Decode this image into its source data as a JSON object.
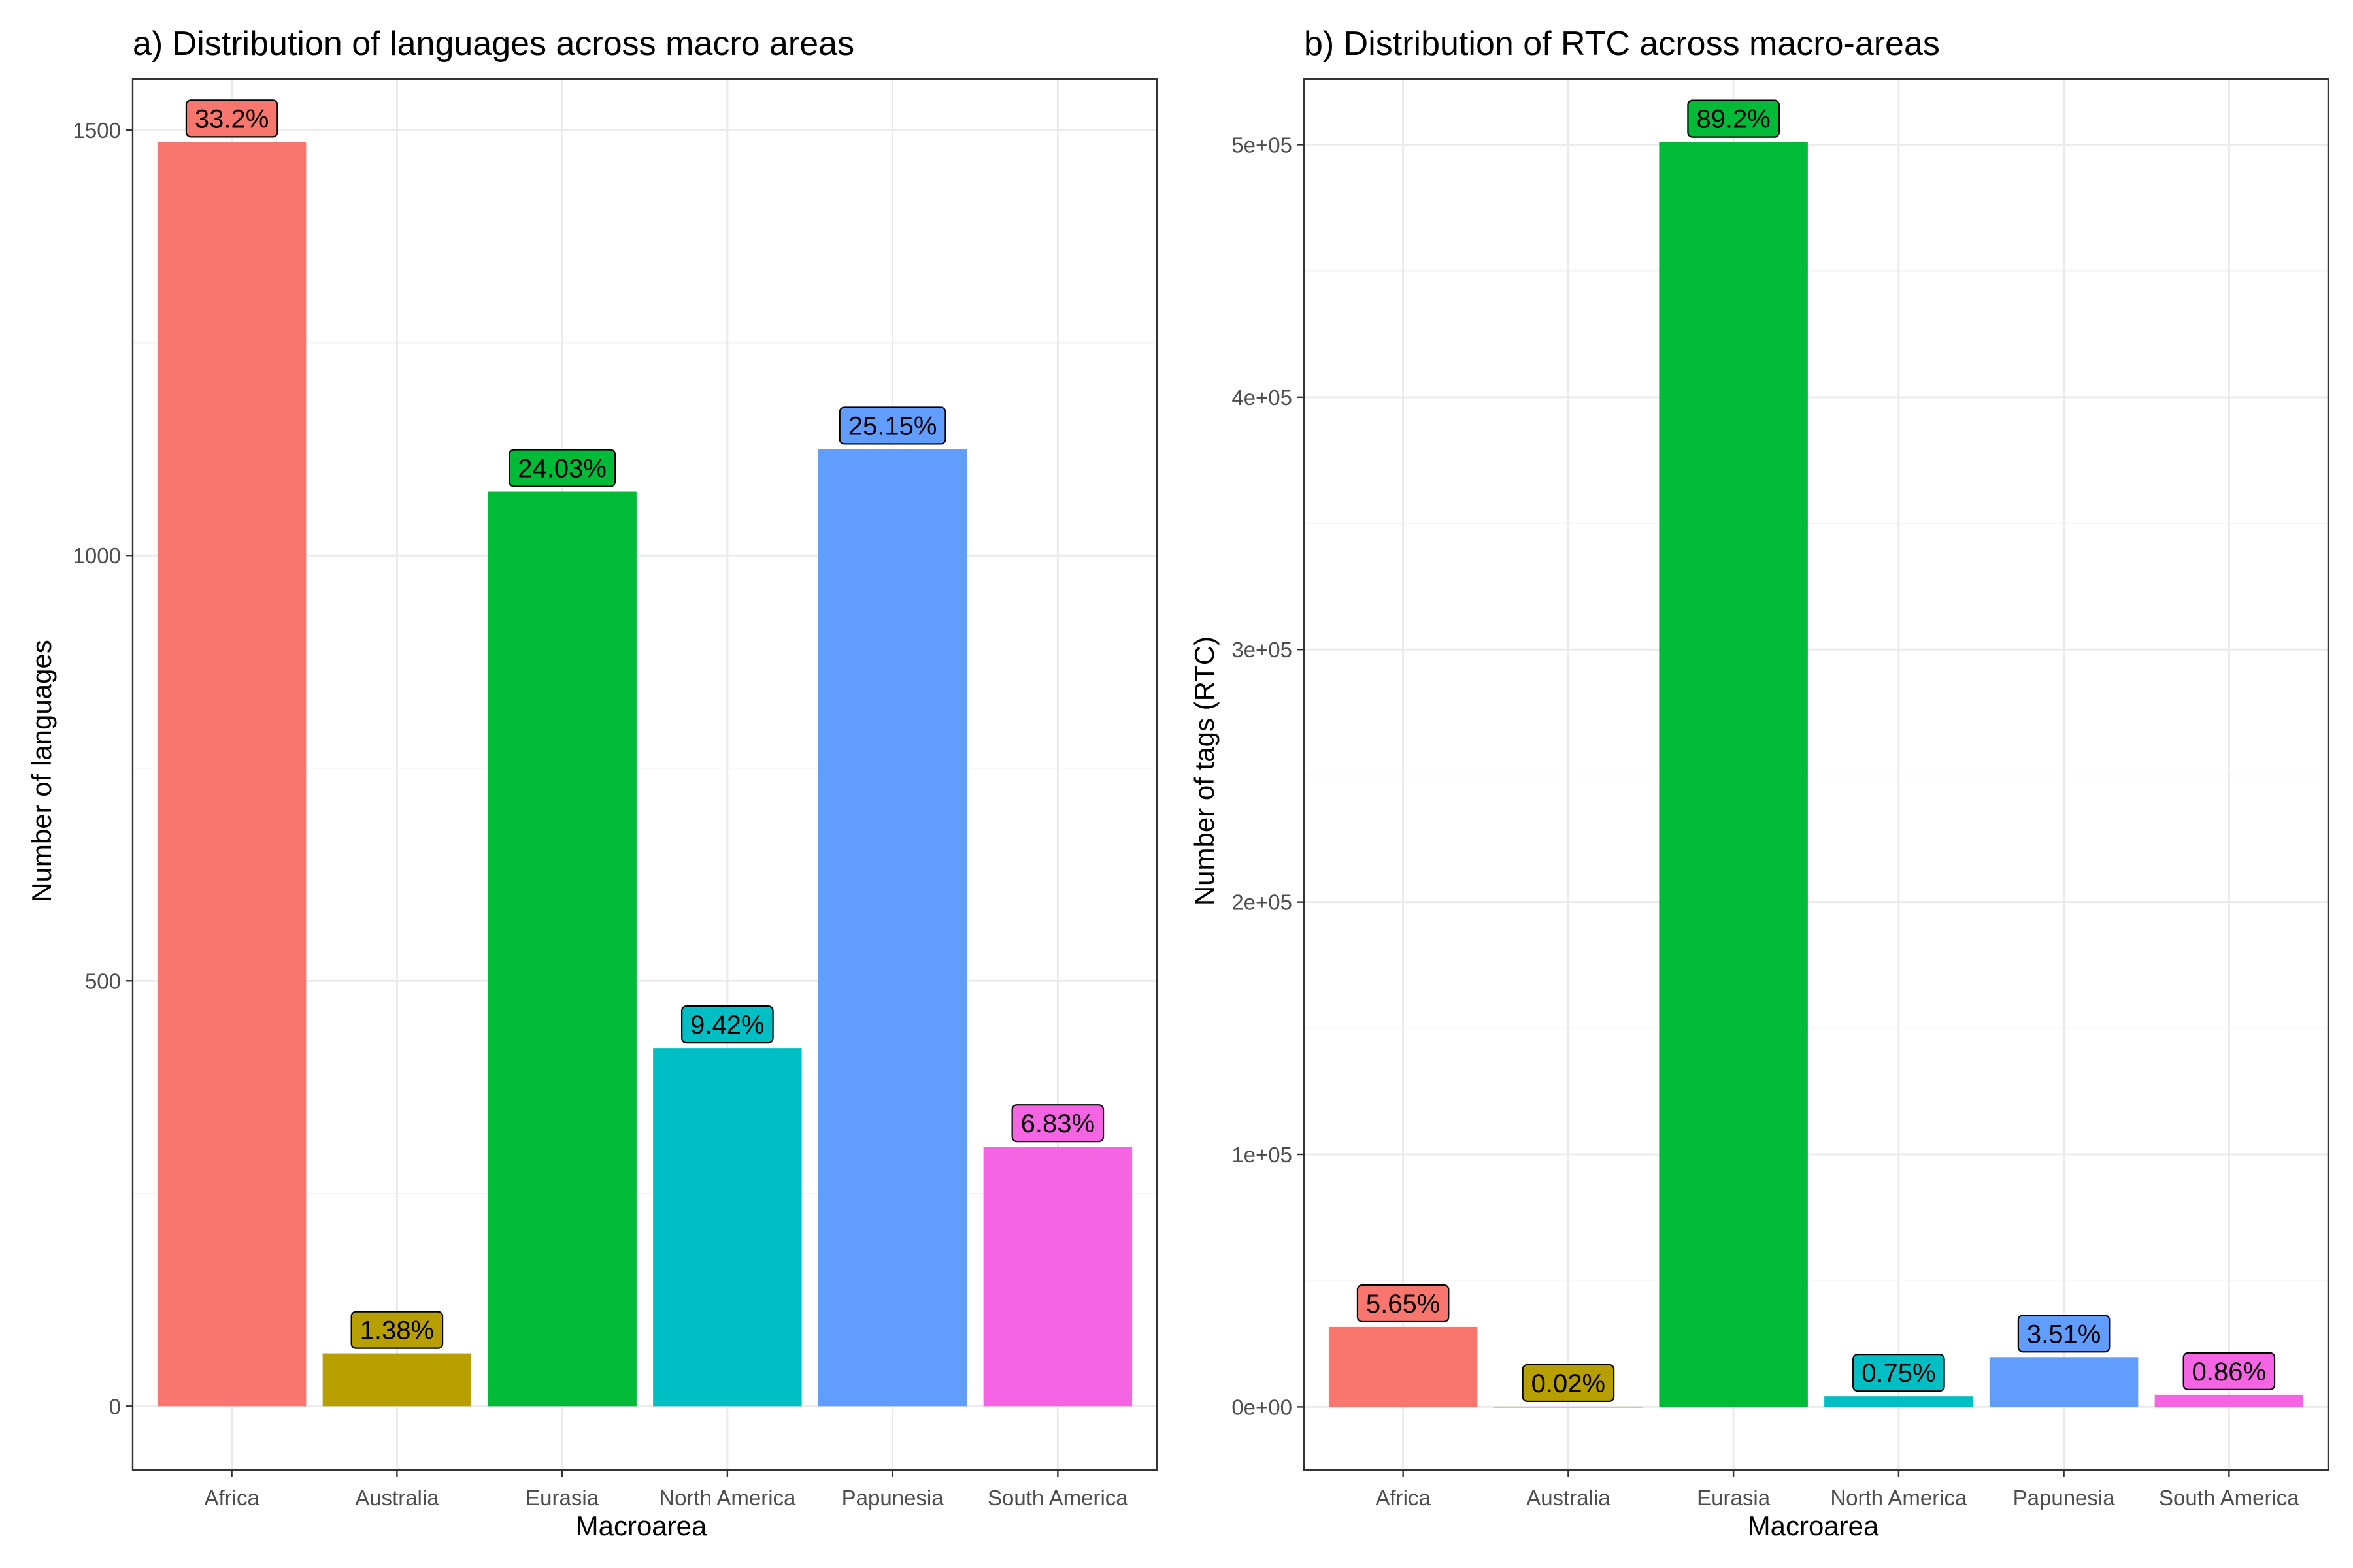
{
  "chart_data": [
    {
      "type": "bar",
      "title": "a) Distribution of languages across macro areas",
      "xlabel": "Macroarea",
      "ylabel": "Number of languages",
      "categories": [
        "Africa",
        "Australia",
        "Eurasia",
        "North America",
        "Papunesia",
        "South America"
      ],
      "values": [
        1486,
        62,
        1075,
        421,
        1125,
        305
      ],
      "labels": [
        "33.2%",
        "1.38%",
        "24.03%",
        "9.42%",
        "25.15%",
        "6.83%"
      ],
      "colors": [
        "#F8766D",
        "#B79F00",
        "#00BA38",
        "#00BFC4",
        "#619CFF",
        "#F564E3"
      ],
      "ylim": [
        -75,
        1560
      ],
      "yticks": [
        0,
        500,
        1000,
        1500
      ],
      "ytick_labels": [
        "0",
        "500",
        "1000",
        "1500"
      ],
      "grid": true,
      "legend": "none"
    },
    {
      "type": "bar",
      "title": "b) Distribution of RTC across macro-areas",
      "xlabel": "Macroarea",
      "ylabel": "Number of tags (RTC)",
      "categories": [
        "Africa",
        "Australia",
        "Eurasia",
        "North America",
        "Papunesia",
        "South America"
      ],
      "values": [
        31700,
        120,
        501000,
        4200,
        19700,
        4800
      ],
      "labels": [
        "5.65%",
        "0.02%",
        "89.2%",
        "0.75%",
        "3.51%",
        "0.86%"
      ],
      "colors": [
        "#F8766D",
        "#B79F00",
        "#00BA38",
        "#00BFC4",
        "#619CFF",
        "#F564E3"
      ],
      "ylim": [
        -25000,
        526000
      ],
      "yticks": [
        0,
        100000,
        200000,
        300000,
        400000,
        500000
      ],
      "ytick_labels": [
        "0e+00",
        "1e+05",
        "2e+05",
        "3e+05",
        "4e+05",
        "5e+05"
      ],
      "grid": true,
      "legend": "none"
    }
  ]
}
